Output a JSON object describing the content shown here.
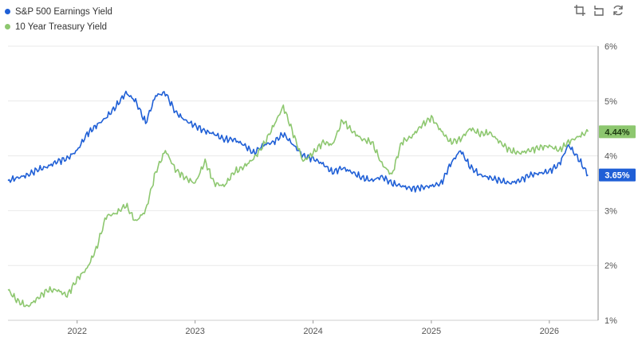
{
  "legend": {
    "items": [
      {
        "label": "S&P 500 Earnings Yield",
        "color": "#1f5fd6"
      },
      {
        "label": "10 Year Treasury Yield",
        "color": "#8dc76f"
      }
    ]
  },
  "toolbar": {
    "icons": [
      "crop-icon",
      "undo-icon",
      "refresh-icon"
    ]
  },
  "chart_data": {
    "type": "line",
    "xlim": [
      "2021-06-01",
      "2026-06-01"
    ],
    "ylim": [
      1,
      6
    ],
    "x_ticks": [
      "2022",
      "2023",
      "2024",
      "2025",
      "2026"
    ],
    "y_ticks": [
      "1%",
      "2%",
      "3%",
      "4%",
      "5%",
      "6%"
    ],
    "y_axis_position": "right",
    "grid": "horizontal",
    "legend_position": "top-left",
    "series": [
      {
        "name": "S&P 500 Earnings Yield",
        "color": "#1f5fd6",
        "last_label": "3.65%",
        "points": [
          [
            "2021-06-01",
            3.55
          ],
          [
            "2021-07-01",
            3.6
          ],
          [
            "2021-08-01",
            3.65
          ],
          [
            "2021-09-01",
            3.75
          ],
          [
            "2021-10-01",
            3.8
          ],
          [
            "2021-11-01",
            3.9
          ],
          [
            "2021-12-01",
            3.95
          ],
          [
            "2022-01-01",
            4.1
          ],
          [
            "2022-02-01",
            4.4
          ],
          [
            "2022-03-01",
            4.55
          ],
          [
            "2022-04-01",
            4.7
          ],
          [
            "2022-05-01",
            4.9
          ],
          [
            "2022-06-01",
            5.15
          ],
          [
            "2022-07-01",
            5.0
          ],
          [
            "2022-08-01",
            4.6
          ],
          [
            "2022-09-01",
            5.1
          ],
          [
            "2022-10-01",
            5.15
          ],
          [
            "2022-11-01",
            4.8
          ],
          [
            "2022-12-01",
            4.65
          ],
          [
            "2023-01-01",
            4.55
          ],
          [
            "2023-02-01",
            4.45
          ],
          [
            "2023-03-01",
            4.4
          ],
          [
            "2023-04-01",
            4.3
          ],
          [
            "2023-05-01",
            4.3
          ],
          [
            "2023-06-01",
            4.2
          ],
          [
            "2023-07-01",
            4.05
          ],
          [
            "2023-08-01",
            4.2
          ],
          [
            "2023-09-01",
            4.25
          ],
          [
            "2023-10-01",
            4.4
          ],
          [
            "2023-11-01",
            4.2
          ],
          [
            "2023-12-01",
            4.0
          ],
          [
            "2024-01-01",
            3.95
          ],
          [
            "2024-02-01",
            3.85
          ],
          [
            "2024-03-01",
            3.7
          ],
          [
            "2024-04-01",
            3.78
          ],
          [
            "2024-05-01",
            3.7
          ],
          [
            "2024-06-01",
            3.6
          ],
          [
            "2024-07-01",
            3.55
          ],
          [
            "2024-08-01",
            3.62
          ],
          [
            "2024-09-01",
            3.5
          ],
          [
            "2024-10-01",
            3.45
          ],
          [
            "2024-11-01",
            3.4
          ],
          [
            "2024-12-01",
            3.42
          ],
          [
            "2025-01-01",
            3.45
          ],
          [
            "2025-02-01",
            3.5
          ],
          [
            "2025-03-01",
            3.85
          ],
          [
            "2025-04-01",
            4.1
          ],
          [
            "2025-05-01",
            3.8
          ],
          [
            "2025-06-01",
            3.65
          ],
          [
            "2025-07-01",
            3.6
          ],
          [
            "2025-08-01",
            3.55
          ],
          [
            "2025-09-01",
            3.5
          ],
          [
            "2025-10-01",
            3.55
          ],
          [
            "2025-11-01",
            3.65
          ],
          [
            "2025-12-01",
            3.68
          ],
          [
            "2026-01-01",
            3.72
          ],
          [
            "2026-02-01",
            3.85
          ],
          [
            "2026-03-01",
            4.2
          ],
          [
            "2026-04-01",
            3.95
          ],
          [
            "2026-05-01",
            3.65
          ]
        ]
      },
      {
        "name": "10 Year Treasury Yield",
        "color": "#8dc76f",
        "last_label": "4.44%",
        "points": [
          [
            "2021-06-01",
            1.55
          ],
          [
            "2021-07-01",
            1.35
          ],
          [
            "2021-08-01",
            1.25
          ],
          [
            "2021-09-01",
            1.4
          ],
          [
            "2021-10-01",
            1.55
          ],
          [
            "2021-11-01",
            1.55
          ],
          [
            "2021-12-01",
            1.45
          ],
          [
            "2022-01-01",
            1.75
          ],
          [
            "2022-02-01",
            1.95
          ],
          [
            "2022-03-01",
            2.3
          ],
          [
            "2022-04-01",
            2.9
          ],
          [
            "2022-05-01",
            2.95
          ],
          [
            "2022-06-01",
            3.1
          ],
          [
            "2022-07-01",
            2.8
          ],
          [
            "2022-08-01",
            3.0
          ],
          [
            "2022-09-01",
            3.7
          ],
          [
            "2022-10-01",
            4.1
          ],
          [
            "2022-11-01",
            3.75
          ],
          [
            "2022-12-01",
            3.6
          ],
          [
            "2023-01-01",
            3.5
          ],
          [
            "2023-02-01",
            3.9
          ],
          [
            "2023-03-01",
            3.5
          ],
          [
            "2023-04-01",
            3.45
          ],
          [
            "2023-05-01",
            3.7
          ],
          [
            "2023-06-01",
            3.8
          ],
          [
            "2023-07-01",
            3.95
          ],
          [
            "2023-08-01",
            4.2
          ],
          [
            "2023-09-01",
            4.55
          ],
          [
            "2023-10-01",
            4.9
          ],
          [
            "2023-11-01",
            4.4
          ],
          [
            "2023-12-01",
            3.9
          ],
          [
            "2024-01-01",
            4.05
          ],
          [
            "2024-02-01",
            4.25
          ],
          [
            "2024-03-01",
            4.2
          ],
          [
            "2024-04-01",
            4.65
          ],
          [
            "2024-05-01",
            4.45
          ],
          [
            "2024-06-01",
            4.3
          ],
          [
            "2024-07-01",
            4.25
          ],
          [
            "2024-08-01",
            3.85
          ],
          [
            "2024-09-01",
            3.65
          ],
          [
            "2024-10-01",
            4.25
          ],
          [
            "2024-11-01",
            4.35
          ],
          [
            "2024-12-01",
            4.55
          ],
          [
            "2025-01-01",
            4.7
          ],
          [
            "2025-02-01",
            4.45
          ],
          [
            "2025-03-01",
            4.25
          ],
          [
            "2025-04-01",
            4.3
          ],
          [
            "2025-05-01",
            4.5
          ],
          [
            "2025-06-01",
            4.4
          ],
          [
            "2025-07-01",
            4.42
          ],
          [
            "2025-08-01",
            4.25
          ],
          [
            "2025-09-01",
            4.1
          ],
          [
            "2025-10-01",
            4.05
          ],
          [
            "2025-11-01",
            4.1
          ],
          [
            "2025-12-01",
            4.15
          ],
          [
            "2026-01-01",
            4.18
          ],
          [
            "2026-02-01",
            4.1
          ],
          [
            "2026-03-01",
            4.25
          ],
          [
            "2026-04-01",
            4.35
          ],
          [
            "2026-05-01",
            4.44
          ]
        ]
      }
    ]
  }
}
